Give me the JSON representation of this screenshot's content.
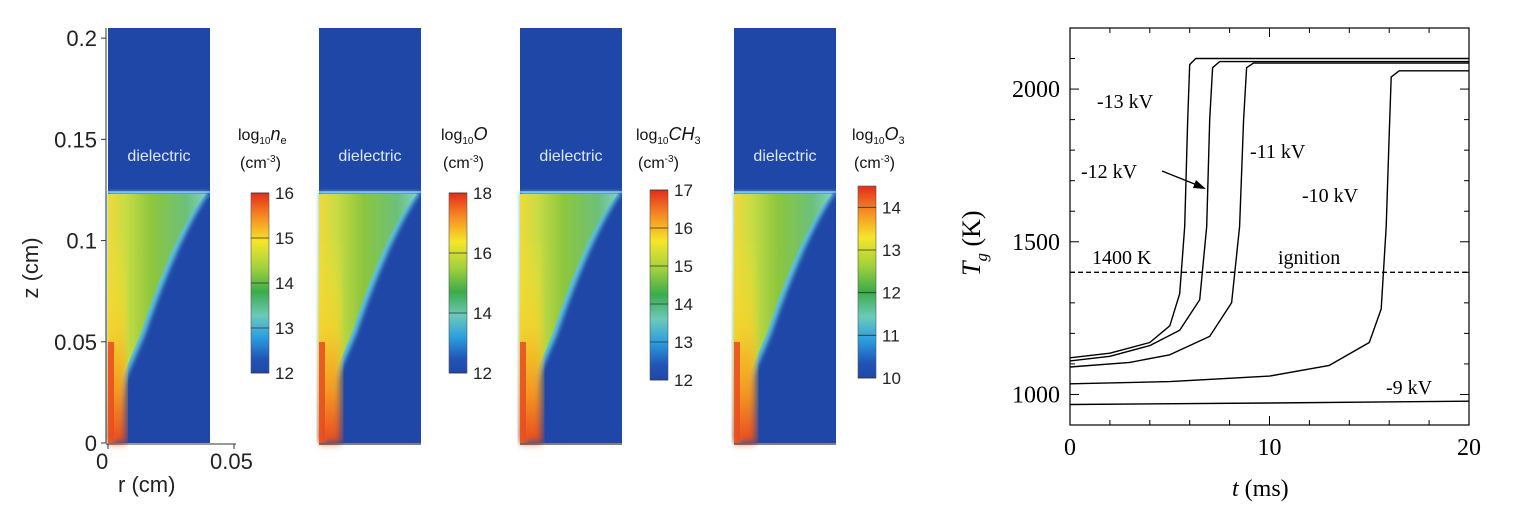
{
  "chart_data": [
    {
      "type": "heatmap",
      "description_panels": "four 2D contour maps of plasma species density",
      "axes": {
        "z_label": "z (cm)",
        "r_label": "r (cm)",
        "z_ticks": [
          "0",
          "0.05",
          "0.1",
          "0.15",
          "0.2"
        ],
        "z_tick_values": [
          0,
          0.05,
          0.1,
          0.15,
          0.2
        ],
        "r_ticks": [
          "0",
          "0.05"
        ],
        "r_tick_values": [
          0,
          0.05
        ],
        "zlim": [
          0,
          0.205
        ],
        "rlim": [
          0,
          0.05
        ]
      },
      "dielectric_label": "dielectric",
      "dielectric_interface_z": 0.124,
      "panels": [
        {
          "species_label": "log",
          "species_sub": "10",
          "species_sym": "n",
          "species_sym_sub": "e",
          "unit": "(cm",
          "unit_exp": "-3",
          "unit_close": ")",
          "cbar_min": 12,
          "cbar_max": 16,
          "cbar_ticks": [
            "16",
            "15",
            "14",
            "13",
            "12"
          ],
          "cbar_tick_values": [
            16,
            15,
            14,
            13,
            12
          ]
        },
        {
          "species_label": "log",
          "species_sub": "10",
          "species_sym": "O",
          "species_sym_sub": "",
          "unit": "(cm",
          "unit_exp": "-3",
          "unit_close": ")",
          "cbar_min": 12,
          "cbar_max": 18,
          "cbar_ticks": [
            "18",
            "16",
            "14",
            "12"
          ],
          "cbar_tick_values": [
            18,
            16,
            14,
            12
          ]
        },
        {
          "species_label": "log",
          "species_sub": "10",
          "species_sym": "CH",
          "species_sym_sub": "3",
          "unit": "(cm",
          "unit_exp": "-3",
          "unit_close": ")",
          "cbar_min": 12,
          "cbar_max": 17,
          "cbar_ticks": [
            "17",
            "16",
            "15",
            "14",
            "13",
            "12"
          ],
          "cbar_tick_values": [
            17,
            16,
            15,
            14,
            13,
            12
          ]
        },
        {
          "species_label": "log",
          "species_sub": "10",
          "species_sym": "O",
          "species_sym_sub": "3",
          "unit": "(cm",
          "unit_exp": "-3",
          "unit_close": ")",
          "cbar_min": 10,
          "cbar_max": 14.5,
          "cbar_ticks": [
            "14",
            "13",
            "12",
            "11",
            "10"
          ],
          "cbar_tick_values": [
            14,
            13,
            12,
            11,
            10
          ]
        }
      ],
      "colors": {
        "dielectric_blue": "#1f47a8",
        "colormap": [
          "#1f47a8",
          "#2fa8de",
          "#7fd0c6",
          "#3aab4a",
          "#8ccc3e",
          "#f2e82a",
          "#f6a021",
          "#e83a1f"
        ]
      }
    },
    {
      "type": "line",
      "xlabel_italic": "t",
      "xlabel_rest": " (ms)",
      "ylabel_italic": "T",
      "ylabel_sub": "g",
      "ylabel_rest": " (K)",
      "xlim": [
        0,
        20
      ],
      "ylim": [
        900,
        2200
      ],
      "x_ticks": [
        "0",
        "10",
        "20"
      ],
      "x_tick_values": [
        0,
        10,
        20
      ],
      "y_ticks": [
        "1000",
        "1500",
        "2000"
      ],
      "y_tick_values": [
        1000,
        1500,
        2000
      ],
      "ignition": {
        "value": 1400,
        "label_left": "1400 K",
        "label_right": "ignition"
      },
      "series": [
        {
          "name": "-13 kV",
          "points": [
            [
              0,
              1120
            ],
            [
              2,
              1135
            ],
            [
              4,
              1170
            ],
            [
              5,
              1225
            ],
            [
              5.5,
              1330
            ],
            [
              5.75,
              1550
            ],
            [
              5.9,
              1900
            ],
            [
              6.0,
              2080
            ],
            [
              6.3,
              2100
            ],
            [
              20,
              2100
            ]
          ]
        },
        {
          "name": "-12 kV",
          "points": [
            [
              0,
              1110
            ],
            [
              2,
              1125
            ],
            [
              4,
              1160
            ],
            [
              5.5,
              1210
            ],
            [
              6.5,
              1310
            ],
            [
              6.85,
              1550
            ],
            [
              7.0,
              1900
            ],
            [
              7.15,
              2070
            ],
            [
              7.5,
              2090
            ],
            [
              20,
              2090
            ]
          ]
        },
        {
          "name": "-11 kV",
          "points": [
            [
              0,
              1090
            ],
            [
              3,
              1105
            ],
            [
              5,
              1130
            ],
            [
              7,
              1190
            ],
            [
              8.1,
              1300
            ],
            [
              8.5,
              1550
            ],
            [
              8.7,
              1900
            ],
            [
              8.85,
              2070
            ],
            [
              9.2,
              2085
            ],
            [
              20,
              2085
            ]
          ]
        },
        {
          "name": "-10 kV",
          "points": [
            [
              0,
              1035
            ],
            [
              5,
              1042
            ],
            [
              10,
              1060
            ],
            [
              13,
              1095
            ],
            [
              15,
              1170
            ],
            [
              15.6,
              1280
            ],
            [
              15.85,
              1550
            ],
            [
              16.0,
              1850
            ],
            [
              16.1,
              2040
            ],
            [
              16.5,
              2060
            ],
            [
              20,
              2060
            ]
          ]
        },
        {
          "name": "-9 kV",
          "points": [
            [
              0,
              967
            ],
            [
              10,
              972
            ],
            [
              20,
              978
            ]
          ]
        }
      ]
    }
  ]
}
